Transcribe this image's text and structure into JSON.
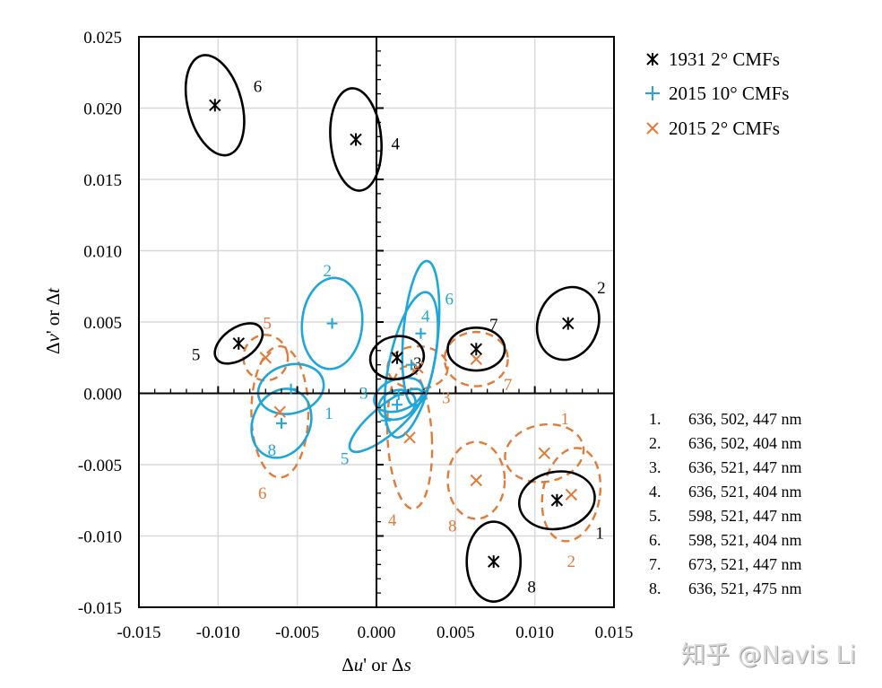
{
  "chart_data": {
    "type": "scatter",
    "title": "",
    "xlabel": {
      "delta": "Δ",
      "var": "u",
      "rest": "' or ",
      "delta2": "Δ",
      "var2": "s"
    },
    "ylabel": {
      "delta": "Δ",
      "var": "v",
      "rest": "' or ",
      "delta2": "Δ",
      "var2": "t"
    },
    "xlim": [
      -0.015,
      0.015
    ],
    "ylim": [
      -0.015,
      0.025
    ],
    "x_ticks": [
      "-0.015",
      "-0.010",
      "-0.005",
      "0.000",
      "0.005",
      "0.010",
      "0.015"
    ],
    "y_ticks": [
      "-0.015",
      "-0.010",
      "-0.005",
      "0.000",
      "0.005",
      "0.010",
      "0.015",
      "0.020",
      "0.025"
    ],
    "x_tick_values": [
      -0.015,
      -0.01,
      -0.005,
      0.0,
      0.005,
      0.01,
      0.015
    ],
    "y_tick_values": [
      -0.015,
      -0.01,
      -0.005,
      0.0,
      0.005,
      0.01,
      0.015,
      0.02,
      0.025
    ],
    "grid": true,
    "legend_position": "top-right",
    "series": [
      {
        "name": "1931 2° CMFs",
        "color": "#000000",
        "marker": "asterisk",
        "line": "solid",
        "points": [
          {
            "id": "1",
            "x": 0.0114,
            "y": -0.0075,
            "rx": 0.0024,
            "ry": 0.002,
            "angle": -10,
            "label_x": 0.0141,
            "label_y": -0.0098
          },
          {
            "id": "2",
            "x": 0.0121,
            "y": 0.0049,
            "rx": 0.0019,
            "ry": 0.0026,
            "angle": 20,
            "label_x": 0.0142,
            "label_y": 0.0074
          },
          {
            "id": "3",
            "x": 0.0013,
            "y": 0.0025,
            "rx": 0.0017,
            "ry": 0.0015,
            "angle": -10,
            "label_x": 0.0026,
            "label_y": 0.0021
          },
          {
            "id": "4",
            "x": -0.0013,
            "y": 0.0178,
            "rx": 0.0016,
            "ry": 0.0036,
            "angle": -5,
            "label_x": 0.0012,
            "label_y": 0.0175
          },
          {
            "id": "5",
            "x": -0.0087,
            "y": 0.0035,
            "rx": 0.0017,
            "ry": 0.0011,
            "angle": -35,
            "label_x": -0.0114,
            "label_y": 0.0027
          },
          {
            "id": "6",
            "x": -0.0102,
            "y": 0.0202,
            "rx": 0.0017,
            "ry": 0.0036,
            "angle": -15,
            "label_x": -0.0075,
            "label_y": 0.0215
          },
          {
            "id": "7",
            "x": 0.0063,
            "y": 0.0031,
            "rx": 0.0018,
            "ry": 0.0015,
            "angle": 0,
            "label_x": 0.0074,
            "label_y": 0.0048
          },
          {
            "id": "8",
            "x": 0.0074,
            "y": -0.0118,
            "rx": 0.0017,
            "ry": 0.0028,
            "angle": 0,
            "label_x": 0.0098,
            "label_y": -0.0136
          }
        ]
      },
      {
        "name": "2015 10° CMFs",
        "color": "#1fa6d8",
        "marker": "plus",
        "line": "solid",
        "points": [
          {
            "id": "1",
            "x": -0.0054,
            "y": 0.0003,
            "rx": 0.0021,
            "ry": 0.0017,
            "angle": -15,
            "label_x": -0.003,
            "label_y": -0.0014
          },
          {
            "id": "2",
            "x": -0.0028,
            "y": 0.0049,
            "rx": 0.0019,
            "ry": 0.0032,
            "angle": 5,
            "label_x": -0.0031,
            "label_y": 0.0086
          },
          {
            "id": "3",
            "x": 0.0013,
            "y": -0.0008,
            "rx": 0.0012,
            "ry": 0.001,
            "angle": -20,
            "label_x": -0.0008,
            "label_y": 0.0
          },
          {
            "id": "4",
            "x": 0.0028,
            "y": 0.0042,
            "rx": 0.0011,
            "ry": 0.0051,
            "angle": 5,
            "label_x": 0.0031,
            "label_y": 0.0054
          },
          {
            "id": "5",
            "x": 0.0006,
            "y": -0.0019,
            "rx": 0.0029,
            "ry": 0.001,
            "angle": -40,
            "label_x": -0.002,
            "label_y": -0.0046
          },
          {
            "id": "6",
            "x": 0.0022,
            "y": 0.002,
            "rx": 0.0014,
            "ry": 0.0052,
            "angle": 12,
            "label_x": 0.0046,
            "label_y": 0.0066
          },
          {
            "id": "7",
            "x": 0.0014,
            "y": -0.0001,
            "rx": 0.0016,
            "ry": 0.0011,
            "angle": -20,
            "label_x": 0.003,
            "label_y": -0.0002
          },
          {
            "id": "8",
            "x": -0.006,
            "y": -0.0021,
            "rx": 0.0018,
            "ry": 0.0025,
            "angle": 25,
            "label_x": -0.0066,
            "label_y": -0.004
          }
        ]
      },
      {
        "name": "2015 2° CMFs",
        "color": "#e07b39",
        "marker": "x",
        "line": "dashed",
        "points": [
          {
            "id": "1",
            "x": 0.0106,
            "y": -0.0042,
            "rx": 0.0025,
            "ry": 0.002,
            "angle": -10,
            "label_x": 0.0119,
            "label_y": -0.0018
          },
          {
            "id": "2",
            "x": 0.0123,
            "y": -0.0071,
            "rx": 0.0018,
            "ry": 0.0033,
            "angle": 10,
            "label_x": 0.0123,
            "label_y": -0.0118
          },
          {
            "id": "3",
            "x": 0.0026,
            "y": 0.0018,
            "rx": 0.0019,
            "ry": 0.0015,
            "angle": 0,
            "label_x": 0.0044,
            "label_y": -0.0003
          },
          {
            "id": "4",
            "x": 0.0021,
            "y": -0.0031,
            "rx": 0.0014,
            "ry": 0.005,
            "angle": -3,
            "label_x": 0.001,
            "label_y": -0.0089
          },
          {
            "id": "5",
            "x": -0.007,
            "y": 0.0025,
            "rx": 0.0014,
            "ry": 0.0016,
            "angle": -10,
            "label_x": -0.0069,
            "label_y": 0.0049
          },
          {
            "id": "6",
            "x": -0.0061,
            "y": -0.0013,
            "rx": 0.0018,
            "ry": 0.0046,
            "angle": 0,
            "label_x": -0.0072,
            "label_y": -0.007
          },
          {
            "id": "7",
            "x": 0.0063,
            "y": 0.0024,
            "rx": 0.002,
            "ry": 0.0019,
            "angle": 0,
            "label_x": 0.0083,
            "label_y": 0.0006
          },
          {
            "id": "8",
            "x": 0.0063,
            "y": -0.0061,
            "rx": 0.0018,
            "ry": 0.0027,
            "angle": 0,
            "label_x": 0.0048,
            "label_y": -0.0093
          }
        ]
      }
    ],
    "wavelength_list": [
      {
        "num": "1.",
        "text": "636, 502, 447 nm"
      },
      {
        "num": "2.",
        "text": "636, 502, 404 nm"
      },
      {
        "num": "3.",
        "text": "636, 521, 447 nm"
      },
      {
        "num": "4.",
        "text": "636, 521, 404 nm"
      },
      {
        "num": "5.",
        "text": "598, 521, 447 nm"
      },
      {
        "num": "6.",
        "text": "598, 521, 404 nm"
      },
      {
        "num": "7.",
        "text": "673, 521, 447 nm"
      },
      {
        "num": "8.",
        "text": "636, 521, 475 nm"
      }
    ]
  },
  "watermark": "知乎 @Navis Li"
}
